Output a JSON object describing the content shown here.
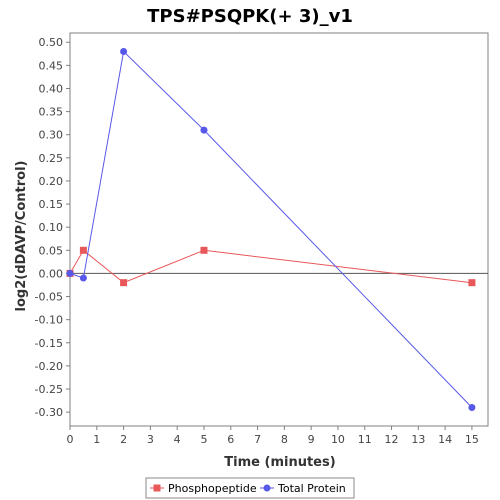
{
  "chart_data": {
    "type": "line",
    "title": "TPS#PSQPK(+ 3)_v1",
    "xlabel": "Time (minutes)",
    "ylabel": "log2(dDAVP/Control)",
    "xlim": [
      0,
      15.6
    ],
    "ylim": [
      -0.33,
      0.52
    ],
    "x_ticks": [
      0,
      1,
      2,
      3,
      4,
      5,
      6,
      7,
      8,
      9,
      10,
      11,
      12,
      13,
      14,
      15
    ],
    "y_ticks": [
      -0.3,
      -0.25,
      -0.2,
      -0.15,
      -0.1,
      -0.05,
      0.0,
      0.05,
      0.1,
      0.15,
      0.2,
      0.25,
      0.3,
      0.35,
      0.4,
      0.45,
      0.5
    ],
    "grid": false,
    "zero_line": true,
    "legend": "bottom",
    "series": [
      {
        "name": "Phosphopeptide",
        "color": "#e8585a",
        "marker": "square",
        "x": [
          0,
          0.5,
          2,
          5,
          15
        ],
        "y": [
          0.0,
          0.05,
          -0.02,
          0.05,
          -0.02
        ]
      },
      {
        "name": "Total Protein",
        "color": "#5858e8",
        "marker": "circle",
        "x": [
          0,
          0.5,
          2,
          5,
          15
        ],
        "y": [
          0.0,
          -0.01,
          0.48,
          0.31,
          -0.29
        ]
      }
    ]
  }
}
